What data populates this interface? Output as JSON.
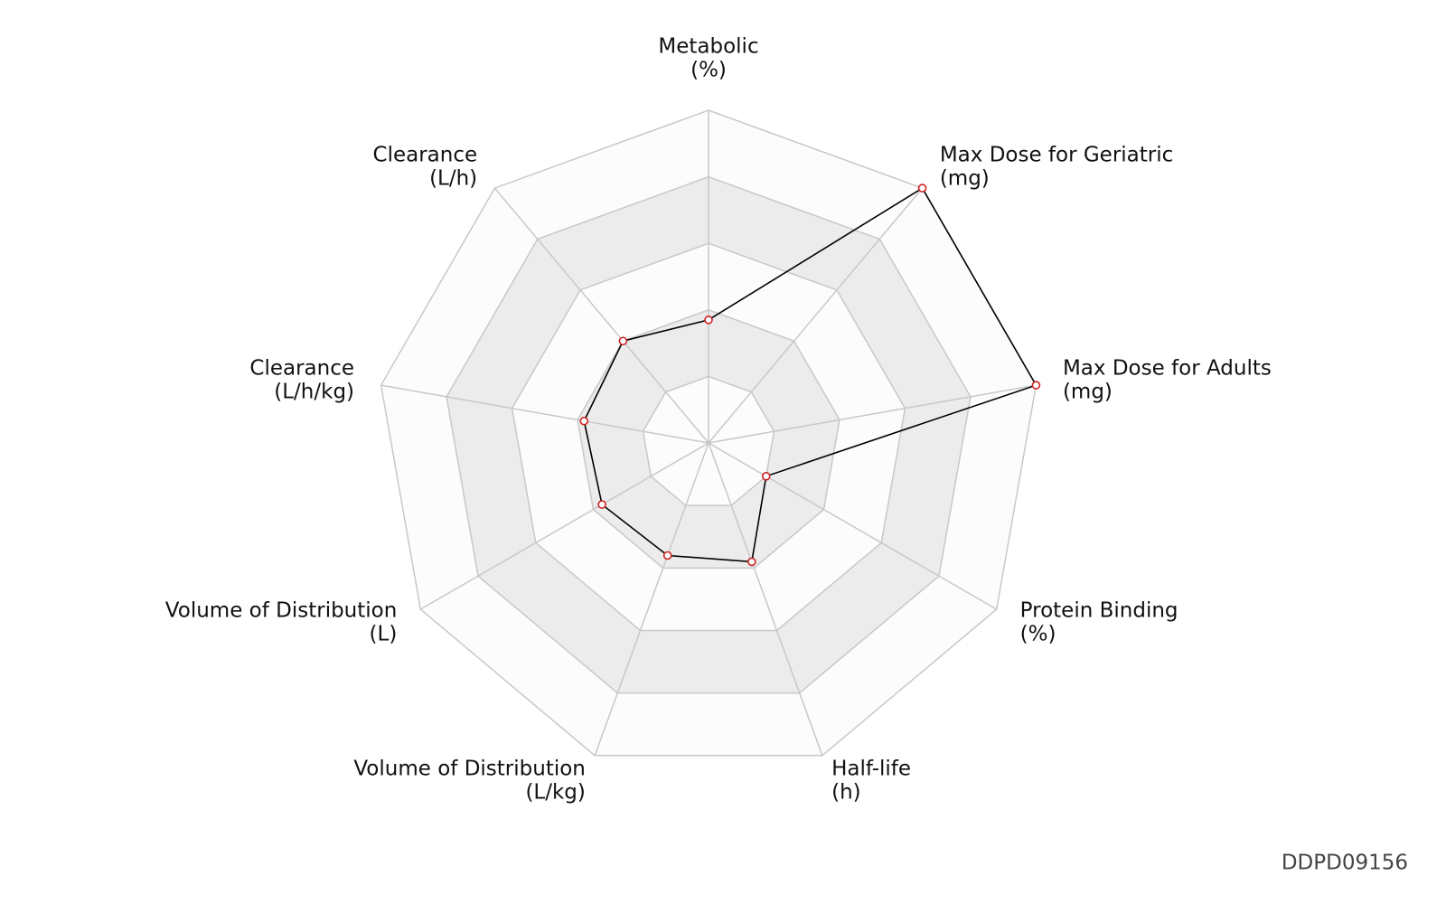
{
  "chart_data": {
    "type": "radar",
    "categories": [
      {
        "name": "Metabolic",
        "unit": "(%)"
      },
      {
        "name": "Max Dose for Geriatric",
        "unit": "(mg)"
      },
      {
        "name": "Max Dose for Adults",
        "unit": "(mg)"
      },
      {
        "name": "Protein Binding",
        "unit": "(%)"
      },
      {
        "name": "Half-life",
        "unit": "(h)"
      },
      {
        "name": "Volume of Distribution",
        "unit": "(L/kg)"
      },
      {
        "name": "Volume of Distribution",
        "unit": "(L)"
      },
      {
        "name": "Clearance",
        "unit": "(L/h/kg)"
      },
      {
        "name": "Clearance",
        "unit": "(L/h)"
      }
    ],
    "values": [
      0.37,
      1.0,
      1.0,
      0.2,
      0.38,
      0.36,
      0.37,
      0.38,
      0.4
    ],
    "color": "#000000",
    "marker_color": "#cc2222",
    "rlim": [
      0,
      1
    ],
    "rticks": [
      0.2,
      0.4,
      0.6,
      0.8,
      1
    ],
    "grid": true,
    "watermark": "DDPD09156"
  }
}
